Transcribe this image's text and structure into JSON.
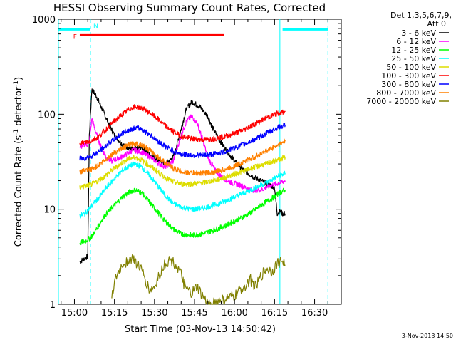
{
  "chart_data": {
    "type": "line",
    "title": "HESSI Observing Summary Count Rates, Corrected",
    "xlabel": "Start Time (03-Nov-13 14:50:42)",
    "ylabel_main": "Corrected Count Rate (s",
    "ylabel_sup1": "-1",
    "ylabel_mid": " detector",
    "ylabel_sup2": "-1",
    "ylabel_end": ")",
    "yscale": "log",
    "ylim": [
      1,
      1000
    ],
    "xlim_minutes": [
      -6,
      100
    ],
    "x_unit": "minutes after 15:00 UT",
    "x_tick_labels": [
      "15:00",
      "15:15",
      "15:30",
      "15:45",
      "16:00",
      "16:15",
      "16:30"
    ],
    "x_tick_minutes": [
      0,
      15,
      30,
      45,
      60,
      75,
      90
    ],
    "y_tick_labels": [
      "1",
      "10",
      "100",
      "1000"
    ],
    "y_tick_values": [
      1,
      10,
      100,
      1000
    ],
    "legend_header": [
      "Det 1,3,5,6,7,9,",
      "Att 0"
    ],
    "legend_position": "right-outside",
    "footer_date": "3-Nov-2013 14:50",
    "flags": {
      "F_label": "F",
      "N_label": "N",
      "flare_bar": {
        "start": 2,
        "end": 56,
        "value": 680,
        "color": "#ff0000"
      },
      "night_bars": [
        {
          "start": -6,
          "end": 6,
          "value": 780,
          "color": "#00ffff"
        },
        {
          "start": 78,
          "end": 95,
          "value": 780,
          "color": "#00ffff"
        }
      ],
      "saa_solid_lines": [
        -6,
        77
      ],
      "saa_dashed_lines": [
        6,
        95
      ]
    },
    "series": [
      {
        "name": "3 - 6 keV",
        "color": "#000000",
        "points": [
          [
            2,
            2.8
          ],
          [
            5,
            3.2
          ],
          [
            5.6,
            60
          ],
          [
            6.5,
            180
          ],
          [
            8,
            160
          ],
          [
            10,
            120
          ],
          [
            12,
            90
          ],
          [
            15,
            60
          ],
          [
            18,
            48
          ],
          [
            22,
            42
          ],
          [
            25,
            45
          ],
          [
            28,
            38
          ],
          [
            31,
            33
          ],
          [
            34,
            30
          ],
          [
            37,
            35
          ],
          [
            40,
            70
          ],
          [
            42,
            115
          ],
          [
            44,
            135
          ],
          [
            47,
            120
          ],
          [
            50,
            95
          ],
          [
            52,
            70
          ],
          [
            55,
            50
          ],
          [
            58,
            38
          ],
          [
            61,
            30
          ],
          [
            64,
            25
          ],
          [
            67,
            22
          ],
          [
            70,
            20
          ],
          [
            73,
            18
          ],
          [
            75,
            17
          ],
          [
            76,
            9
          ],
          [
            77,
            9.5
          ],
          [
            78,
            9
          ],
          [
            79,
            9
          ]
        ]
      },
      {
        "name": "6 - 12 keV",
        "color": "#ff00ff",
        "points": [
          [
            2,
            45
          ],
          [
            4,
            48
          ],
          [
            5.5,
            48
          ],
          [
            6.5,
            90
          ],
          [
            8,
            65
          ],
          [
            10,
            45
          ],
          [
            12,
            35
          ],
          [
            14,
            32
          ],
          [
            18,
            36
          ],
          [
            22,
            42
          ],
          [
            25,
            40
          ],
          [
            28,
            36
          ],
          [
            31,
            31
          ],
          [
            34,
            28
          ],
          [
            37,
            32
          ],
          [
            40,
            60
          ],
          [
            42,
            85
          ],
          [
            44,
            95
          ],
          [
            46,
            80
          ],
          [
            48,
            55
          ],
          [
            50,
            35
          ],
          [
            53,
            25
          ],
          [
            56,
            21
          ],
          [
            59,
            19
          ],
          [
            62,
            18
          ],
          [
            66,
            16
          ],
          [
            70,
            16
          ],
          [
            74,
            18
          ],
          [
            77,
            19
          ],
          [
            79,
            20
          ]
        ]
      },
      {
        "name": "12 - 25 keV",
        "color": "#00ff00",
        "points": [
          [
            2,
            4.4
          ],
          [
            4,
            4.6
          ],
          [
            6,
            5
          ],
          [
            8,
            6
          ],
          [
            10,
            7.5
          ],
          [
            12,
            9
          ],
          [
            15,
            11
          ],
          [
            18,
            13.5
          ],
          [
            21,
            15.5
          ],
          [
            23,
            16
          ],
          [
            25,
            15
          ],
          [
            28,
            12
          ],
          [
            31,
            9.5
          ],
          [
            34,
            7.5
          ],
          [
            37,
            6.2
          ],
          [
            40,
            5.5
          ],
          [
            44,
            5.3
          ],
          [
            48,
            5.5
          ],
          [
            52,
            6
          ],
          [
            56,
            6.6
          ],
          [
            60,
            7.5
          ],
          [
            64,
            8.5
          ],
          [
            68,
            10
          ],
          [
            71,
            11.5
          ],
          [
            74,
            13
          ],
          [
            77,
            15
          ],
          [
            79,
            16
          ]
        ]
      },
      {
        "name": "25 - 50 keV",
        "color": "#00ffff",
        "points": [
          [
            2,
            8.5
          ],
          [
            4,
            9
          ],
          [
            6,
            10.5
          ],
          [
            9,
            13
          ],
          [
            12,
            17
          ],
          [
            15,
            21
          ],
          [
            18,
            25.5
          ],
          [
            21,
            29
          ],
          [
            23,
            30
          ],
          [
            25,
            28
          ],
          [
            28,
            23
          ],
          [
            31,
            18
          ],
          [
            34,
            14
          ],
          [
            37,
            11.5
          ],
          [
            40,
            10.5
          ],
          [
            44,
            10
          ],
          [
            48,
            10.2
          ],
          [
            52,
            11
          ],
          [
            56,
            12
          ],
          [
            60,
            13.5
          ],
          [
            64,
            15
          ],
          [
            68,
            17
          ],
          [
            72,
            19
          ],
          [
            76,
            22
          ],
          [
            79,
            24
          ]
        ]
      },
      {
        "name": "50 - 100 keV",
        "color": "#dddd00",
        "points": [
          [
            2,
            17
          ],
          [
            4,
            17.5
          ],
          [
            6,
            18
          ],
          [
            9,
            20
          ],
          [
            12,
            23
          ],
          [
            15,
            27
          ],
          [
            18,
            31
          ],
          [
            21,
            34.5
          ],
          [
            23,
            35
          ],
          [
            25,
            33
          ],
          [
            28,
            29
          ],
          [
            31,
            25
          ],
          [
            34,
            21.5
          ],
          [
            37,
            19.5
          ],
          [
            40,
            18.5
          ],
          [
            44,
            18.5
          ],
          [
            48,
            19
          ],
          [
            52,
            20
          ],
          [
            56,
            21.5
          ],
          [
            60,
            23.5
          ],
          [
            64,
            25.5
          ],
          [
            68,
            28
          ],
          [
            72,
            30
          ],
          [
            76,
            33
          ],
          [
            79,
            35
          ]
        ]
      },
      {
        "name": "100 - 300 keV",
        "color": "#ff0000",
        "points": [
          [
            2,
            50
          ],
          [
            4,
            50.5
          ],
          [
            6,
            52
          ],
          [
            9,
            58
          ],
          [
            12,
            70
          ],
          [
            15,
            85
          ],
          [
            18,
            100
          ],
          [
            21,
            115
          ],
          [
            23,
            120
          ],
          [
            25,
            117
          ],
          [
            28,
            105
          ],
          [
            31,
            90
          ],
          [
            34,
            76
          ],
          [
            37,
            66
          ],
          [
            40,
            59
          ],
          [
            44,
            55
          ],
          [
            48,
            54
          ],
          [
            52,
            55
          ],
          [
            56,
            58
          ],
          [
            60,
            63
          ],
          [
            64,
            70
          ],
          [
            68,
            80
          ],
          [
            72,
            92
          ],
          [
            76,
            102
          ],
          [
            79,
            106
          ]
        ]
      },
      {
        "name": "300 - 800 keV",
        "color": "#0000ff",
        "points": [
          [
            2,
            34
          ],
          [
            4,
            34.5
          ],
          [
            6,
            36
          ],
          [
            9,
            40
          ],
          [
            12,
            47
          ],
          [
            15,
            55
          ],
          [
            18,
            63
          ],
          [
            21,
            70
          ],
          [
            23,
            72
          ],
          [
            25,
            70
          ],
          [
            28,
            62
          ],
          [
            31,
            53
          ],
          [
            34,
            46
          ],
          [
            37,
            41
          ],
          [
            40,
            38
          ],
          [
            44,
            37
          ],
          [
            48,
            37
          ],
          [
            52,
            38
          ],
          [
            56,
            40
          ],
          [
            60,
            44
          ],
          [
            64,
            49
          ],
          [
            68,
            55
          ],
          [
            72,
            63
          ],
          [
            76,
            72
          ],
          [
            79,
            77
          ]
        ]
      },
      {
        "name": "800 - 7000 keV",
        "color": "#ff8000",
        "points": [
          [
            2,
            25
          ],
          [
            4,
            25.3
          ],
          [
            6,
            26
          ],
          [
            9,
            29
          ],
          [
            12,
            34
          ],
          [
            15,
            39.5
          ],
          [
            18,
            44
          ],
          [
            21,
            48
          ],
          [
            23,
            49
          ],
          [
            25,
            48
          ],
          [
            28,
            42
          ],
          [
            31,
            36
          ],
          [
            34,
            31
          ],
          [
            37,
            27
          ],
          [
            40,
            25
          ],
          [
            44,
            24
          ],
          [
            48,
            24
          ],
          [
            52,
            24.5
          ],
          [
            56,
            26
          ],
          [
            60,
            28.5
          ],
          [
            64,
            32
          ],
          [
            68,
            36
          ],
          [
            72,
            41
          ],
          [
            76,
            47
          ],
          [
            79,
            52
          ]
        ]
      },
      {
        "name": "7000 - 20000 keV",
        "color": "#808000",
        "points": [
          [
            14,
            1.3
          ],
          [
            16,
            2.0
          ],
          [
            18,
            2.6
          ],
          [
            20,
            2.9
          ],
          [
            22,
            3.0
          ],
          [
            24,
            2.6
          ],
          [
            26,
            2.0
          ],
          [
            28,
            1.4
          ],
          [
            30,
            1.5
          ],
          [
            32,
            2.1
          ],
          [
            34,
            2.7
          ],
          [
            36,
            2.9
          ],
          [
            38,
            2.6
          ],
          [
            40,
            2.0
          ],
          [
            42,
            1.4
          ],
          [
            44,
            1.3
          ],
          [
            46,
            1.5
          ],
          [
            48,
            1.2
          ],
          [
            50,
            1.0
          ],
          [
            60,
            1.2
          ],
          [
            63,
            1.5
          ],
          [
            66,
            1.8
          ],
          [
            68,
            1.5
          ],
          [
            70,
            2.0
          ],
          [
            72,
            2.4
          ],
          [
            74,
            2.2
          ],
          [
            76,
            2.7
          ],
          [
            78,
            2.9
          ],
          [
            79,
            2.6
          ]
        ]
      }
    ]
  }
}
